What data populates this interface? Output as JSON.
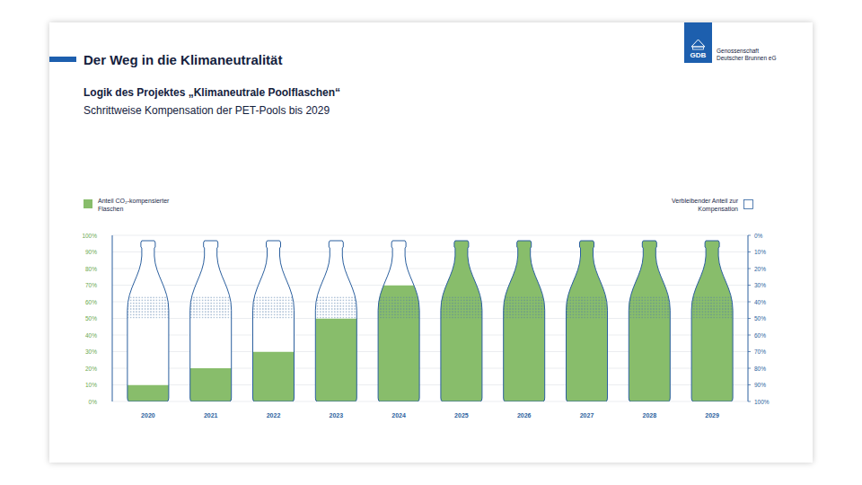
{
  "chart_data": {
    "type": "bar",
    "title": "Der Weg in die Klimaneutralität",
    "subtitle": "Logik des Projektes „Klimaneutrale Poolflaschen“",
    "description": "Schrittweise Kompensation der PET-Pools bis 2029",
    "logo_text": "GDB",
    "organization": "Genossenschaft Deutscher Brunnen eG",
    "categories": [
      "2020",
      "2021",
      "2022",
      "2023",
      "2024",
      "2025",
      "2026",
      "2027",
      "2028",
      "2029"
    ],
    "series": [
      {
        "name": "Anteil CO₂-kompensierter Flaschen",
        "color": "#88bd6b",
        "values": [
          10,
          20,
          30,
          50,
          70,
          100,
          100,
          100,
          100,
          100
        ]
      },
      {
        "name": "Verbleibender Anteil zur Kompensation",
        "color": "#ffffff",
        "axis": "y2",
        "values": [
          90,
          80,
          70,
          50,
          30,
          0,
          0,
          0,
          0,
          0
        ]
      }
    ],
    "ylim": [
      0,
      100
    ],
    "yticks": [
      {
        "value": 0,
        "label": "0%"
      },
      {
        "value": 10,
        "label": "10%"
      },
      {
        "value": 20,
        "label": "20%"
      },
      {
        "value": 30,
        "label": "30%"
      },
      {
        "value": 40,
        "label": "40%"
      },
      {
        "value": 50,
        "label": "50%"
      },
      {
        "value": 60,
        "label": "60%"
      },
      {
        "value": 70,
        "label": "70%"
      },
      {
        "value": 80,
        "label": "80%"
      },
      {
        "value": 90,
        "label": "90%"
      },
      {
        "value": 100,
        "label": "100%"
      }
    ],
    "y2lim": [
      100,
      0
    ],
    "y2ticks": [
      {
        "value": 0,
        "label": "0%"
      },
      {
        "value": 10,
        "label": "10%"
      },
      {
        "value": 20,
        "label": "20%"
      },
      {
        "value": 30,
        "label": "30%"
      },
      {
        "value": 40,
        "label": "40%"
      },
      {
        "value": 50,
        "label": "50%"
      },
      {
        "value": 60,
        "label": "60%"
      },
      {
        "value": 70,
        "label": "70%"
      },
      {
        "value": 80,
        "label": "80%"
      },
      {
        "value": 90,
        "label": "90%"
      },
      {
        "value": 100,
        "label": "100%"
      }
    ],
    "stacked": true,
    "grid": true,
    "legend": "top"
  }
}
